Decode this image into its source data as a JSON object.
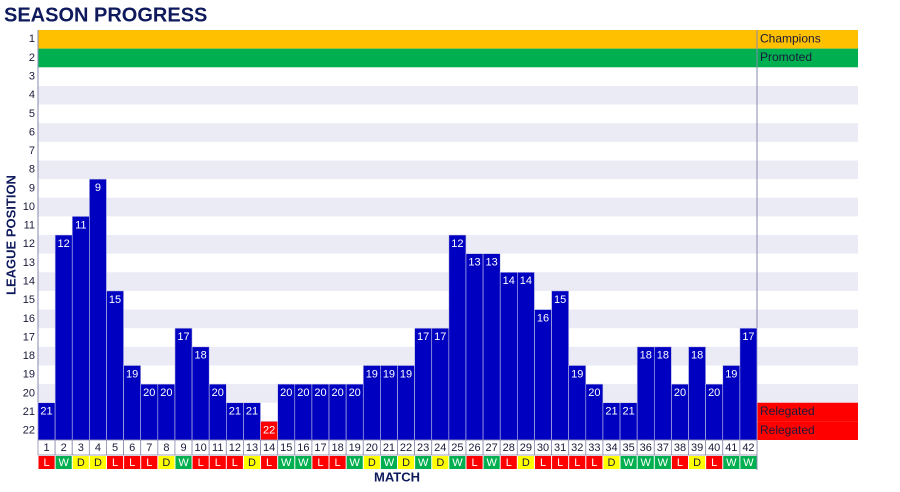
{
  "chart_data": {
    "type": "position-bar",
    "title": "SEASON PROGRESS",
    "x_label": "MATCH",
    "y_label": "LEAGUE POSITION",
    "categories": [
      "1",
      "2",
      "3",
      "4",
      "5",
      "6",
      "7",
      "8",
      "9",
      "10",
      "11",
      "12",
      "13",
      "14",
      "15",
      "16",
      "17",
      "18",
      "19",
      "20",
      "21",
      "22",
      "23",
      "24",
      "25",
      "26",
      "27",
      "28",
      "29",
      "30",
      "31",
      "32",
      "33",
      "34",
      "35",
      "36",
      "37",
      "38",
      "39",
      "40",
      "41",
      "42"
    ],
    "values": [
      21,
      12,
      11,
      9,
      15,
      19,
      20,
      20,
      17,
      18,
      20,
      21,
      21,
      22,
      20,
      20,
      20,
      20,
      20,
      19,
      19,
      19,
      17,
      17,
      12,
      13,
      13,
      14,
      14,
      16,
      15,
      19,
      20,
      21,
      21,
      18,
      18,
      20,
      18,
      20,
      19,
      17
    ],
    "colors": [
      "#0000c0",
      "#0000c0",
      "#0000c0",
      "#0000c0",
      "#0000c0",
      "#0000c0",
      "#0000c0",
      "#0000c0",
      "#0000c0",
      "#0000c0",
      "#0000c0",
      "#0000c0",
      "#0000c0",
      "#ff0000",
      "#0000c0",
      "#0000c0",
      "#0000c0",
      "#0000c0",
      "#0000c0",
      "#0000c0",
      "#0000c0",
      "#0000c0",
      "#0000c0",
      "#0000c0",
      "#0000c0",
      "#0000c0",
      "#0000c0",
      "#0000c0",
      "#0000c0",
      "#0000c0",
      "#0000c0",
      "#0000c0",
      "#0000c0",
      "#0000c0",
      "#0000c0",
      "#0000c0",
      "#0000c0",
      "#0000c0",
      "#0000c0",
      "#0000c0",
      "#0000c0",
      "#0000c0"
    ],
    "results": [
      "L",
      "W",
      "D",
      "D",
      "L",
      "L",
      "L",
      "D",
      "W",
      "L",
      "L",
      "L",
      "D",
      "L",
      "W",
      "W",
      "L",
      "L",
      "W",
      "D",
      "W",
      "D",
      "W",
      "D",
      "W",
      "L",
      "W",
      "L",
      "D",
      "L",
      "L",
      "L",
      "L",
      "D",
      "W",
      "W",
      "W",
      "L",
      "D",
      "L",
      "W",
      "W"
    ],
    "result_colors": {
      "W": {
        "fill": "#00b050",
        "text": "#ffffff"
      },
      "D": {
        "fill": "#ffff00",
        "text": "#1a1a3a"
      },
      "L": {
        "fill": "#ff0000",
        "text": "#ffffff"
      }
    },
    "ylim": [
      1,
      22
    ],
    "yticks": [
      1,
      2,
      3,
      4,
      5,
      6,
      7,
      8,
      9,
      10,
      11,
      12,
      13,
      14,
      15,
      16,
      17,
      18,
      19,
      20,
      21,
      22
    ],
    "zones": [
      {
        "position": 1,
        "label": "Champions",
        "color": "#ffc000"
      },
      {
        "position": 2,
        "label": "Promoted",
        "color": "#00b050"
      },
      {
        "position": 21,
        "label": "Relegated",
        "color": "#ff0000"
      },
      {
        "position": 22,
        "label": "Relegated",
        "color": "#ff0000"
      }
    ],
    "stripe_color": "#ebebf5"
  }
}
